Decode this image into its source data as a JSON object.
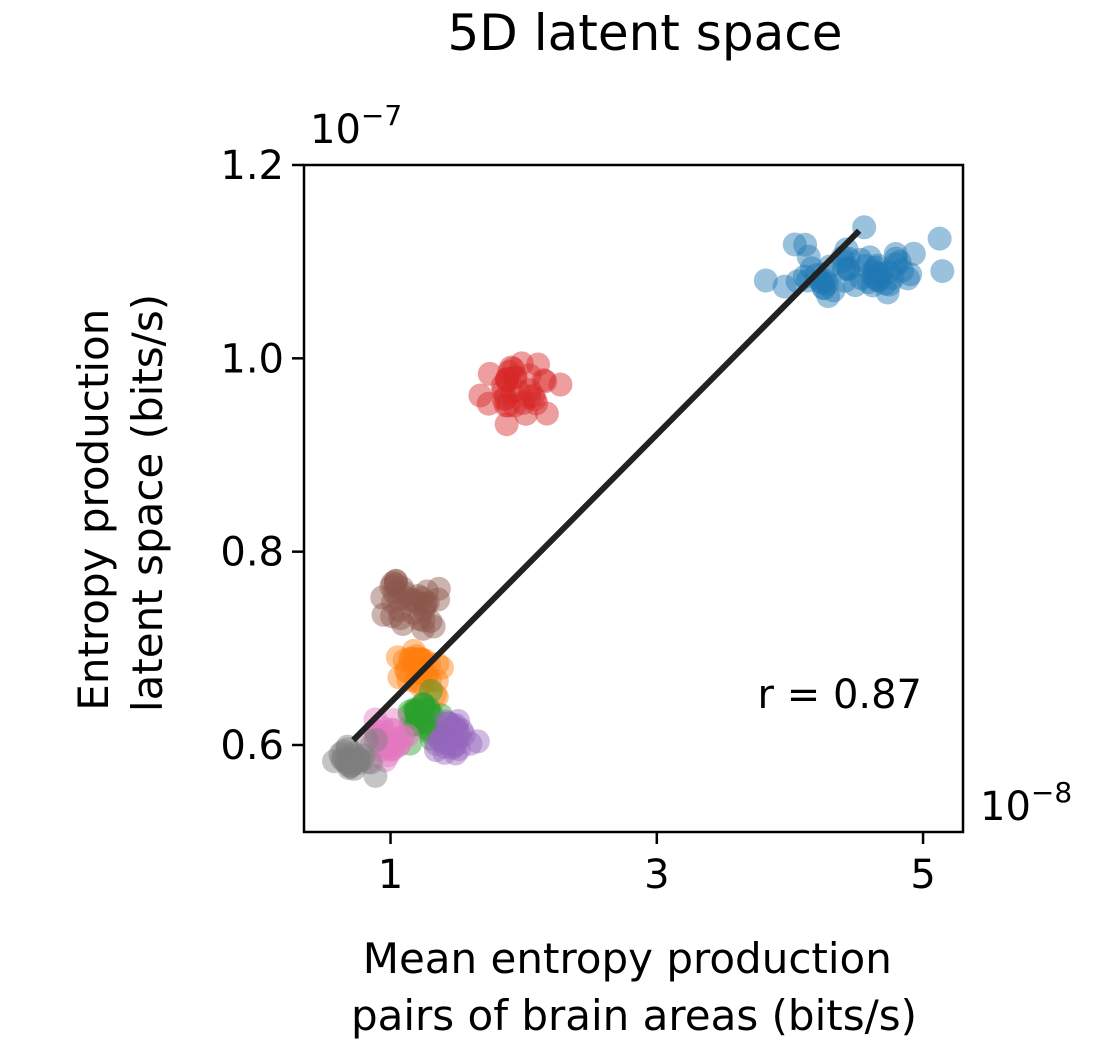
{
  "chart_data": {
    "type": "scatter",
    "title": "5D latent space",
    "xlabel": [
      "Mean entropy production",
      "pairs of brain areas (bits/s)"
    ],
    "ylabel": [
      "Entropy production",
      "latent space (bits/s)"
    ],
    "x_multiplier": "10",
    "x_multiplier_exp": "−8",
    "y_multiplier": "10",
    "y_multiplier_exp": "−7",
    "xlim": [
      0.35,
      5.3
    ],
    "ylim": [
      0.51,
      1.2
    ],
    "xticks": [
      1,
      3,
      5
    ],
    "xtick_labels": [
      "1",
      "3",
      "5"
    ],
    "yticks": [
      0.6,
      0.8,
      1.0,
      1.2
    ],
    "ytick_labels": [
      "0.6",
      "0.8",
      "1.0",
      "1.2"
    ],
    "grid": false,
    "annotation": "r = 0.87",
    "fit_line": {
      "x": [
        0.72,
        4.52
      ],
      "y": [
        0.605,
        1.132
      ],
      "color": "#222222"
    },
    "series": [
      {
        "color": "#1f77b4",
        "cx": 4.5,
        "cy": 1.092,
        "sx": 0.27,
        "sy": 0.016,
        "n": 60,
        "seed": 11
      },
      {
        "color": "#d62728",
        "cx": 2.0,
        "cy": 0.965,
        "sx": 0.12,
        "sy": 0.013,
        "n": 35,
        "seed": 23
      },
      {
        "color": "#8c564b",
        "cx": 1.15,
        "cy": 0.745,
        "sx": 0.1,
        "sy": 0.013,
        "n": 35,
        "seed": 37
      },
      {
        "color": "#ff7f0e",
        "cx": 1.22,
        "cy": 0.678,
        "sx": 0.1,
        "sy": 0.011,
        "n": 35,
        "seed": 41
      },
      {
        "color": "#2ca02c",
        "cx": 1.25,
        "cy": 0.63,
        "sx": 0.08,
        "sy": 0.012,
        "n": 30,
        "seed": 53
      },
      {
        "color": "#9467bd",
        "cx": 1.48,
        "cy": 0.605,
        "sx": 0.08,
        "sy": 0.01,
        "n": 30,
        "seed": 67
      },
      {
        "color": "#e377c2",
        "cx": 1.0,
        "cy": 0.603,
        "sx": 0.08,
        "sy": 0.01,
        "n": 30,
        "seed": 71
      },
      {
        "color": "#7f7f7f",
        "cx": 0.72,
        "cy": 0.585,
        "sx": 0.07,
        "sy": 0.008,
        "n": 30,
        "seed": 83
      }
    ]
  }
}
